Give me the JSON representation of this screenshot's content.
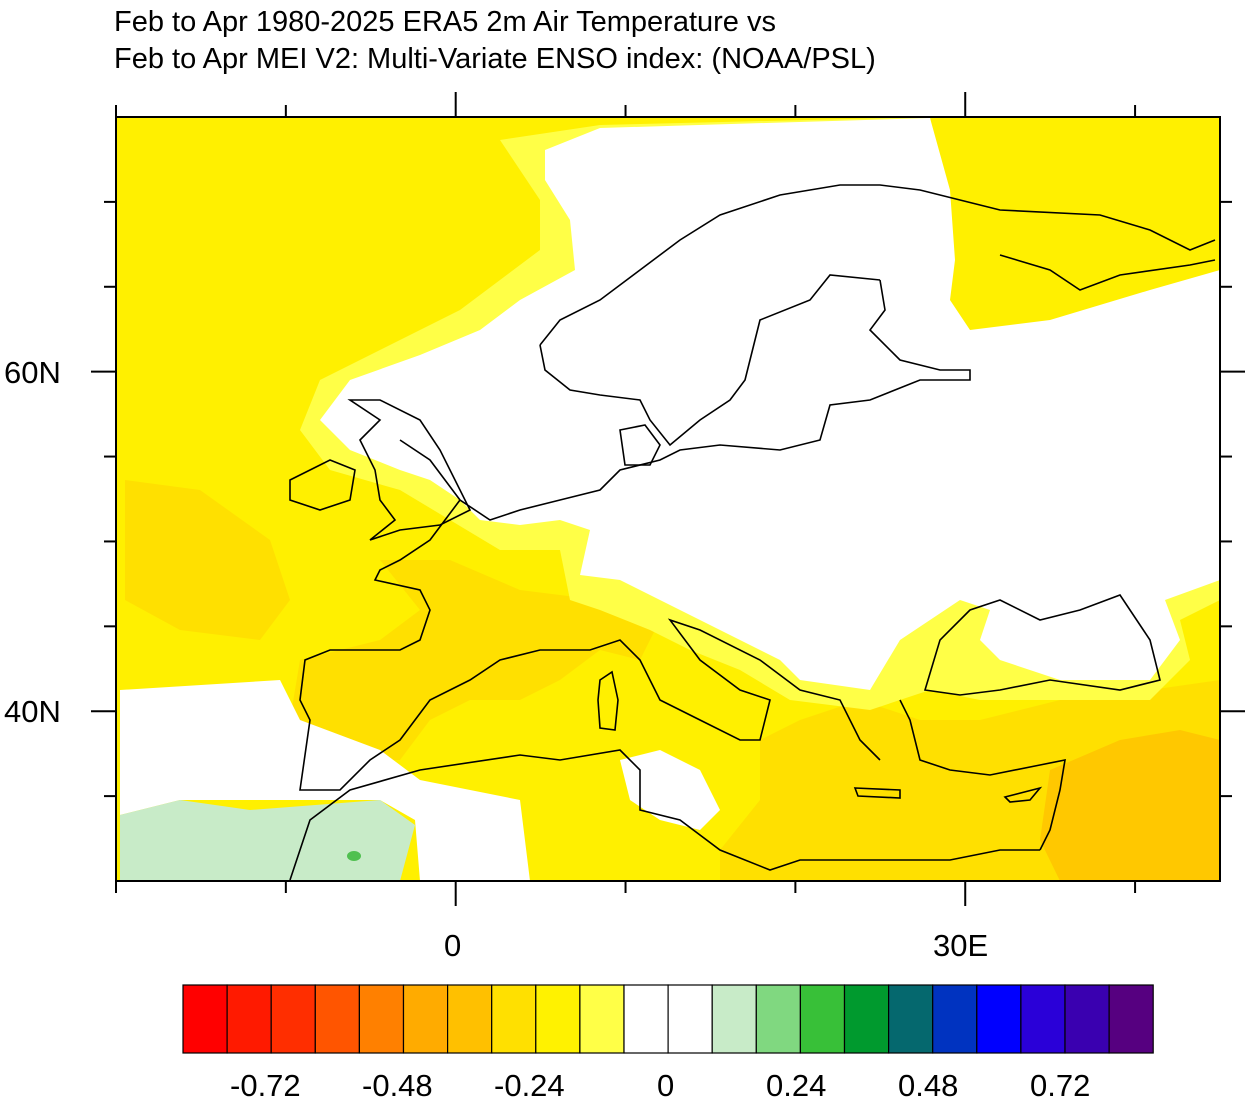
{
  "title": {
    "line1": "Feb to Apr 1980-2025 ERA5 2m Air Temperature vs",
    "line2": "Feb to Apr MEI V2: Multi-Variate ENSO index: (NOAA/PSL)"
  },
  "map": {
    "projection": "cylindrical equidistant",
    "lon_range": [
      -20,
      45
    ],
    "lat_range": [
      30,
      75
    ],
    "x_tick_labels": [
      "0",
      "30E"
    ],
    "y_tick_labels": [
      "60N",
      "40N"
    ],
    "field": "correlation",
    "colors": {
      "light_yellow": "#ffff47",
      "yellow": "#fff000",
      "gold": "#ffe000",
      "amber": "#ffc800",
      "light_green": "#c8ebc8",
      "green_spot": "#50c050",
      "coastline": "#000000"
    }
  },
  "colorbar": {
    "tick_labels": [
      "-0.72",
      "-0.48",
      "-0.24",
      "0",
      "0.24",
      "0.48",
      "0.72"
    ],
    "levels_min": -0.8,
    "level_step": 0.08,
    "colors": [
      "#ff0000",
      "#ff1a00",
      "#ff2e00",
      "#ff5500",
      "#ff8000",
      "#ffab00",
      "#ffc000",
      "#ffe000",
      "#fff200",
      "#ffff47",
      "#ffffff",
      "#ffffff",
      "#c8ebc8",
      "#80d880",
      "#38c038",
      "#009a2e",
      "#05686e",
      "#0033c0",
      "#0000ff",
      "#2a00d8",
      "#3a00b0",
      "#560080"
    ]
  }
}
